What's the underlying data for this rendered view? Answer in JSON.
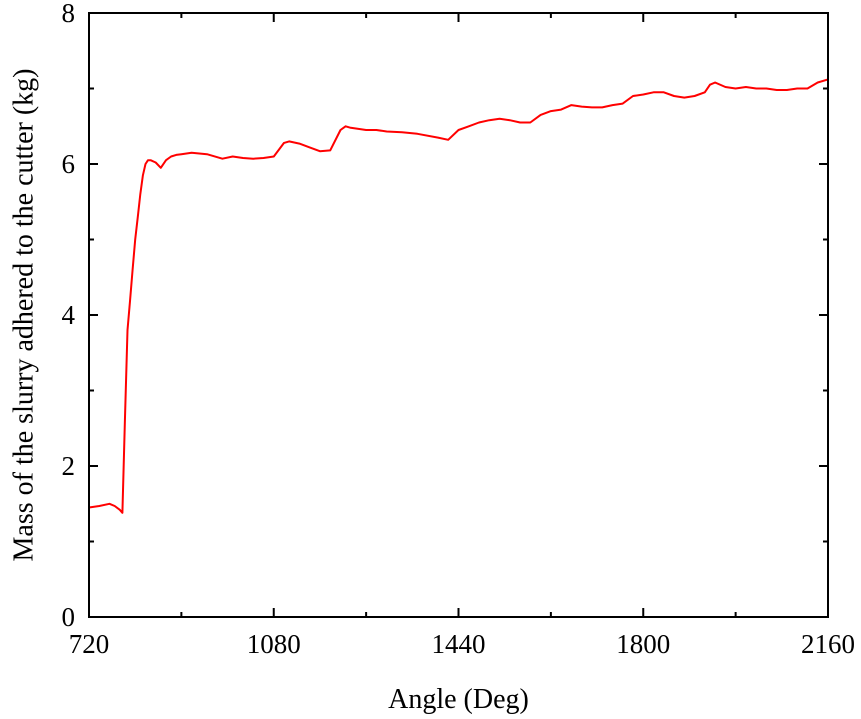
{
  "chart_data": {
    "type": "line",
    "title": "",
    "xlabel": "Angle (Deg)",
    "ylabel": "Mass of the slurry adhered to the cutter (kg)",
    "xlim": [
      720,
      2160
    ],
    "ylim": [
      0,
      8
    ],
    "x_ticks": [
      720,
      1080,
      1440,
      1800,
      2160
    ],
    "x_tick_labels": [
      "720",
      "1080",
      "1440",
      "1800",
      "2160"
    ],
    "y_ticks": [
      0,
      2,
      4,
      6,
      8
    ],
    "y_tick_labels": [
      "0",
      "2",
      "4",
      "6",
      "8"
    ],
    "grid": false,
    "legend": "none",
    "series": [
      {
        "color": "#ff0000",
        "x": [
          720,
          740,
          760,
          770,
          780,
          785,
          790,
          795,
          800,
          805,
          810,
          815,
          820,
          825,
          830,
          835,
          840,
          850,
          860,
          870,
          880,
          890,
          900,
          920,
          950,
          980,
          1000,
          1020,
          1040,
          1060,
          1080,
          1100,
          1110,
          1130,
          1150,
          1170,
          1190,
          1210,
          1220,
          1230,
          1240,
          1260,
          1280,
          1300,
          1330,
          1360,
          1400,
          1420,
          1440,
          1460,
          1480,
          1500,
          1520,
          1540,
          1560,
          1580,
          1600,
          1620,
          1640,
          1660,
          1680,
          1700,
          1720,
          1740,
          1760,
          1780,
          1800,
          1820,
          1840,
          1860,
          1880,
          1900,
          1920,
          1930,
          1940,
          1960,
          1980,
          2000,
          2020,
          2040,
          2060,
          2080,
          2100,
          2120,
          2140,
          2160
        ],
        "y": [
          1.45,
          1.47,
          1.5,
          1.47,
          1.42,
          1.38,
          2.6,
          3.8,
          4.2,
          4.6,
          5.0,
          5.3,
          5.6,
          5.85,
          6.0,
          6.05,
          6.05,
          6.02,
          5.95,
          6.05,
          6.1,
          6.12,
          6.13,
          6.15,
          6.13,
          6.07,
          6.1,
          6.08,
          6.07,
          6.08,
          6.1,
          6.28,
          6.3,
          6.27,
          6.22,
          6.17,
          6.18,
          6.45,
          6.5,
          6.48,
          6.47,
          6.45,
          6.45,
          6.43,
          6.42,
          6.4,
          6.35,
          6.32,
          6.45,
          6.5,
          6.55,
          6.58,
          6.6,
          6.58,
          6.55,
          6.55,
          6.65,
          6.7,
          6.72,
          6.78,
          6.76,
          6.75,
          6.75,
          6.78,
          6.8,
          6.9,
          6.92,
          6.95,
          6.95,
          6.9,
          6.88,
          6.9,
          6.95,
          7.05,
          7.08,
          7.02,
          7.0,
          7.02,
          7.0,
          7.0,
          6.98,
          6.98,
          7.0,
          7.0,
          7.08,
          7.12
        ]
      }
    ]
  }
}
